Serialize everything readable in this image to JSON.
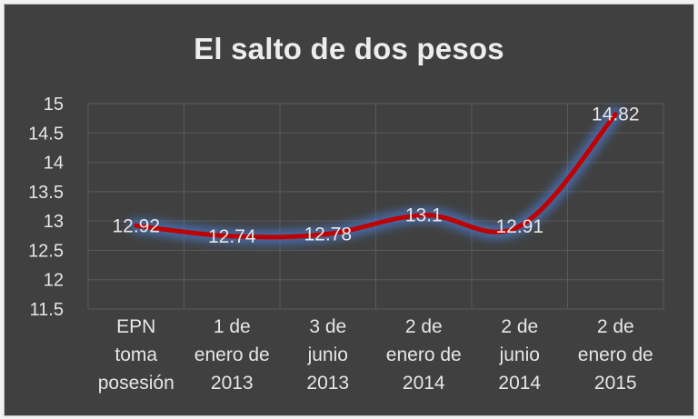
{
  "chart_data": {
    "type": "line",
    "title": "El salto de dos pesos",
    "categories": [
      [
        "EPN",
        "toma",
        "posesión"
      ],
      [
        "1 de",
        "enero de",
        "2013"
      ],
      [
        "3 de",
        "junio",
        "2013"
      ],
      [
        "2 de",
        "enero de",
        "2014"
      ],
      [
        "2 de",
        "junio",
        "2014"
      ],
      [
        "2 de",
        "enero de",
        "2015"
      ]
    ],
    "series": [
      {
        "values": [
          12.92,
          12.74,
          12.78,
          13.1,
          12.91,
          14.82
        ]
      }
    ],
    "data_labels": [
      "12.92",
      "12.74",
      "12.78",
      "13.1",
      "12.91",
      "14.82"
    ],
    "y_ticks": [
      "11.5",
      "12",
      "12.5",
      "13",
      "13.5",
      "14",
      "14.5",
      "15"
    ],
    "ylim": [
      11.5,
      15
    ],
    "grid": true,
    "legend": "none",
    "colors": {
      "background": "#404040",
      "line": "#c00000",
      "glow": "#4a78c8",
      "grid": "#5a5a5a",
      "text": "#e6e6e6"
    }
  }
}
